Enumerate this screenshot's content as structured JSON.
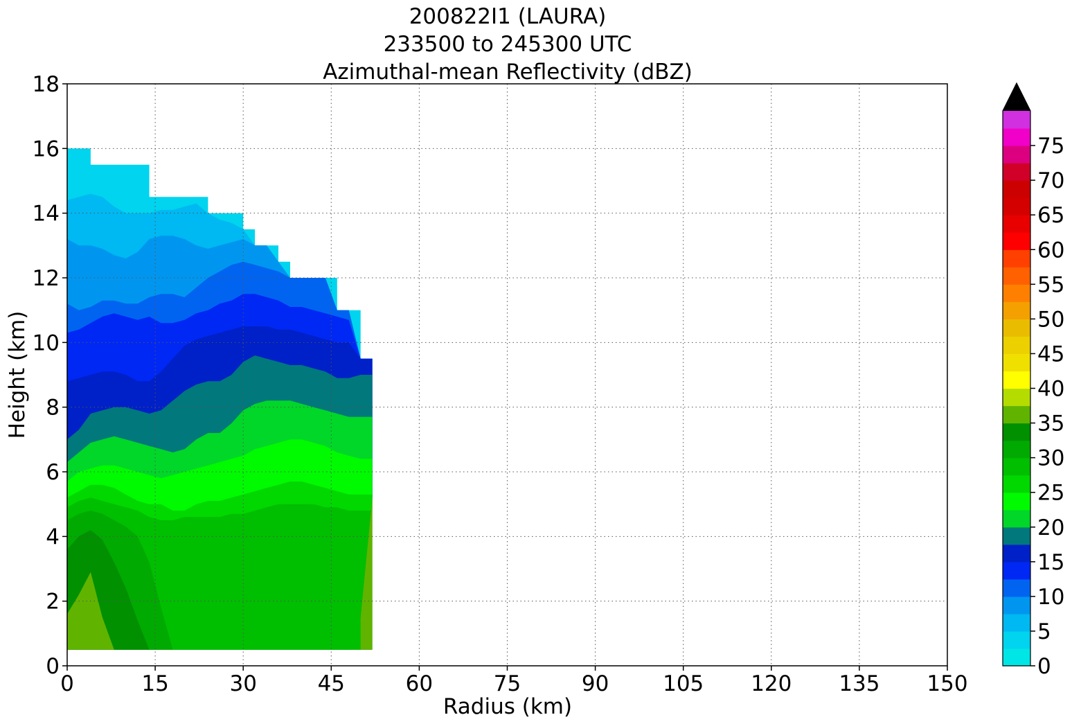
{
  "chart_data": {
    "type": "heatmap",
    "title": [
      "200822I1 (LAURA)",
      "233500 to 245300 UTC",
      "Azimuthal-mean Reflectivity (dBZ)"
    ],
    "xlabel": "Radius (km)",
    "ylabel": "Height (km)",
    "xlim": [
      0,
      150
    ],
    "ylim": [
      0,
      18
    ],
    "xticks": [
      0,
      15,
      30,
      45,
      60,
      75,
      90,
      105,
      120,
      135,
      150
    ],
    "yticks": [
      0,
      2,
      4,
      6,
      8,
      10,
      12,
      14,
      16,
      18
    ],
    "grid": true,
    "colorbar": {
      "levels": [
        0,
        2.5,
        5,
        7.5,
        10,
        12.5,
        15,
        17.5,
        20,
        22.5,
        25,
        27.5,
        30,
        32.5,
        35,
        37.5,
        40,
        42.5,
        45,
        47.5,
        50,
        52.5,
        55,
        57.5,
        60,
        62.5,
        65,
        67.5,
        70,
        72.5,
        75,
        77.5,
        80
      ],
      "tick_labels": [
        "0",
        "5",
        "10",
        "15",
        "20",
        "25",
        "30",
        "35",
        "40",
        "45",
        "50",
        "55",
        "60",
        "65",
        "70",
        "75"
      ],
      "tick_values": [
        0,
        5,
        10,
        15,
        20,
        25,
        30,
        35,
        40,
        45,
        50,
        55,
        60,
        65,
        70,
        75
      ],
      "extend": "max",
      "colors": [
        "#00e6e6",
        "#00d4ee",
        "#00b8f2",
        "#0096f0",
        "#0064f0",
        "#0028f4",
        "#0020c8",
        "#00787c",
        "#00d728",
        "#00fa00",
        "#00d800",
        "#00be00",
        "#00aa00",
        "#009000",
        "#60b400",
        "#b4dc00",
        "#ffff00",
        "#f0e000",
        "#ecd000",
        "#eabc00",
        "#f4a000",
        "#ff8000",
        "#ff6000",
        "#ff4000",
        "#ff0000",
        "#e80000",
        "#d40000",
        "#cc0000",
        "#d00028",
        "#dc0080",
        "#f000c8",
        "#d030e0",
        "#a050d0",
        "#7040a0",
        "#402050"
      ],
      "over_color": "#000000"
    },
    "profile_radius_km": [
      0,
      2,
      4,
      6,
      8,
      10,
      12,
      14,
      16,
      18,
      20,
      22,
      24,
      26,
      28,
      30,
      32,
      34,
      36,
      38,
      40,
      42,
      44,
      46,
      48,
      50,
      52
    ],
    "echo_top_km": [
      16,
      16,
      15.5,
      15.5,
      15.5,
      15.5,
      15.5,
      14.5,
      14.5,
      14.5,
      14.5,
      14.5,
      14,
      14,
      14,
      13.5,
      13,
      13,
      12.5,
      12,
      12,
      12,
      12,
      11,
      11,
      9.5,
      9.5
    ],
    "echo_base_km": [
      0.5,
      0.5,
      0.5,
      0.5,
      0.5,
      0.5,
      0.5,
      0.5,
      0.5,
      0.5,
      0.5,
      0.5,
      0.5,
      0.5,
      0.5,
      0.5,
      0.5,
      0.5,
      0.5,
      0.5,
      0.5,
      0.5,
      0.5,
      0.5,
      0.5,
      1.5,
      5.2
    ],
    "contours": [
      {
        "dbz": 5,
        "height_km": [
          14.4,
          14.5,
          14.6,
          14.5,
          14.2,
          14.0,
          14.0,
          14.0,
          14.1,
          14.1,
          14.2,
          14.3,
          14.0,
          13.8,
          13.7,
          13.5,
          13.0,
          13.0,
          12.5,
          12.0,
          12.0,
          12.0,
          12.0,
          11.0,
          11.0,
          9.5,
          9.5
        ]
      },
      {
        "dbz": 7.5,
        "height_km": [
          13.2,
          13.0,
          13.0,
          12.9,
          12.7,
          12.6,
          12.8,
          13.2,
          13.3,
          13.3,
          13.2,
          13.0,
          12.9,
          13.0,
          13.1,
          13.2,
          13.0,
          13.0,
          12.5,
          12.0,
          12.0,
          12.0,
          12.0,
          11.0,
          11.0,
          9.5,
          9.5
        ]
      },
      {
        "dbz": 10,
        "height_km": [
          11.2,
          11.0,
          11.1,
          11.3,
          11.3,
          11.2,
          11.2,
          11.4,
          11.5,
          11.5,
          11.4,
          11.7,
          12.0,
          12.2,
          12.4,
          12.5,
          12.4,
          12.3,
          12.2,
          12.0,
          12.0,
          12.0,
          12.0,
          11.0,
          11.0,
          9.5,
          9.5
        ]
      },
      {
        "dbz": 12.5,
        "height_km": [
          10.3,
          10.4,
          10.6,
          10.8,
          10.9,
          10.8,
          10.7,
          10.8,
          10.6,
          10.6,
          10.7,
          10.9,
          11.0,
          11.2,
          11.3,
          11.5,
          11.5,
          11.4,
          11.3,
          11.1,
          11.1,
          11.0,
          10.9,
          10.8,
          10.7,
          9.5,
          9.5
        ]
      },
      {
        "dbz": 15,
        "height_km": [
          8.8,
          8.9,
          9.0,
          9.1,
          9.1,
          9.0,
          8.8,
          8.8,
          9.1,
          9.5,
          9.9,
          10.1,
          10.2,
          10.3,
          10.4,
          10.5,
          10.5,
          10.5,
          10.4,
          10.4,
          10.3,
          10.2,
          10.1,
          10.0,
          10.0,
          9.5,
          9.5
        ]
      },
      {
        "dbz": 17.5,
        "height_km": [
          7.0,
          7.3,
          7.8,
          7.9,
          8.0,
          8.0,
          7.9,
          7.8,
          7.9,
          8.2,
          8.5,
          8.7,
          8.8,
          8.8,
          9.0,
          9.4,
          9.6,
          9.5,
          9.4,
          9.3,
          9.3,
          9.2,
          9.1,
          8.9,
          8.9,
          9.0,
          9.0
        ]
      },
      {
        "dbz": 20,
        "height_km": [
          6.3,
          6.6,
          6.9,
          7.0,
          7.1,
          7.0,
          6.9,
          6.8,
          6.7,
          6.6,
          6.7,
          7.0,
          7.2,
          7.2,
          7.5,
          7.9,
          8.1,
          8.2,
          8.2,
          8.2,
          8.1,
          8.0,
          7.9,
          7.8,
          7.7,
          7.7,
          7.7
        ]
      },
      {
        "dbz": 22.5,
        "height_km": [
          5.7,
          6.0,
          6.1,
          6.2,
          6.2,
          6.1,
          6.0,
          5.9,
          5.8,
          5.9,
          6.0,
          6.1,
          6.2,
          6.3,
          6.4,
          6.5,
          6.7,
          6.8,
          6.9,
          7.0,
          7.0,
          6.9,
          6.8,
          6.6,
          6.5,
          6.4,
          6.4
        ]
      },
      {
        "dbz": 25,
        "height_km": [
          5.2,
          5.4,
          5.6,
          5.6,
          5.5,
          5.3,
          5.1,
          5.0,
          5.0,
          4.8,
          4.8,
          5.0,
          5.1,
          5.1,
          5.2,
          5.3,
          5.4,
          5.5,
          5.6,
          5.7,
          5.7,
          5.6,
          5.5,
          5.4,
          5.3,
          5.3,
          5.3
        ]
      },
      {
        "dbz": 27.5,
        "height_km": [
          4.9,
          5.1,
          5.2,
          5.1,
          5.0,
          4.9,
          4.8,
          4.6,
          4.5,
          4.5,
          4.6,
          4.6,
          4.6,
          4.6,
          4.7,
          4.7,
          4.8,
          4.9,
          5.0,
          5.0,
          5.0,
          5.0,
          4.9,
          4.9,
          4.8,
          4.8,
          4.8
        ]
      },
      {
        "dbz": 30,
        "height_km": [
          4.5,
          4.7,
          4.8,
          4.7,
          4.5,
          4.3,
          4.0,
          3.2,
          1.8,
          0.5,
          0.5,
          0.5,
          0.5,
          0.5,
          0.5,
          0.5,
          0.5,
          0.5,
          0.5,
          0.5,
          0.5,
          0.5,
          0.5,
          0.5,
          0.5,
          0.5,
          0.5
        ]
      },
      {
        "dbz": 32.5,
        "height_km": [
          3.6,
          4.0,
          4.2,
          3.9,
          3.2,
          2.4,
          1.4,
          0.5,
          0.5,
          0.5,
          0.5,
          0.5,
          0.5,
          0.5,
          0.5,
          0.5,
          0.5,
          0.5,
          0.5,
          0.5,
          0.5,
          0.5,
          0.5,
          0.5,
          0.5,
          0.5,
          0.5
        ]
      },
      {
        "dbz": 35,
        "height_km": [
          1.6,
          2.2,
          2.9,
          1.5,
          0.5,
          0.5,
          0.5,
          0.5,
          0.5,
          0.5,
          0.5,
          0.5,
          0.5,
          0.5,
          0.5,
          0.5,
          0.5,
          0.5,
          0.5,
          0.5,
          0.5,
          0.5,
          0.5,
          0.5,
          0.5,
          0.5,
          0.5
        ]
      }
    ],
    "inner_core_27_5_region": {
      "radius_km": [
        32,
        34,
        36,
        38,
        40,
        42,
        44,
        46,
        48,
        50
      ],
      "top_km": [
        1.0,
        1.6,
        2.4,
        3.4,
        4.6,
        4.8,
        4.9,
        4.8,
        4.7,
        4.6
      ],
      "bottom_km": [
        0.5,
        0.5,
        0.5,
        0.5,
        0.5,
        0.5,
        0.5,
        0.5,
        0.5,
        0.5
      ]
    },
    "eyewall_column_27_5_region": {
      "radius_km": [
        8,
        10,
        12,
        14,
        16
      ],
      "top_km": [
        4.6,
        4.5,
        4.5,
        4.2,
        4.0
      ],
      "bottom_km": [
        0.5,
        0.5,
        0.5,
        0.5,
        1.4
      ]
    }
  }
}
